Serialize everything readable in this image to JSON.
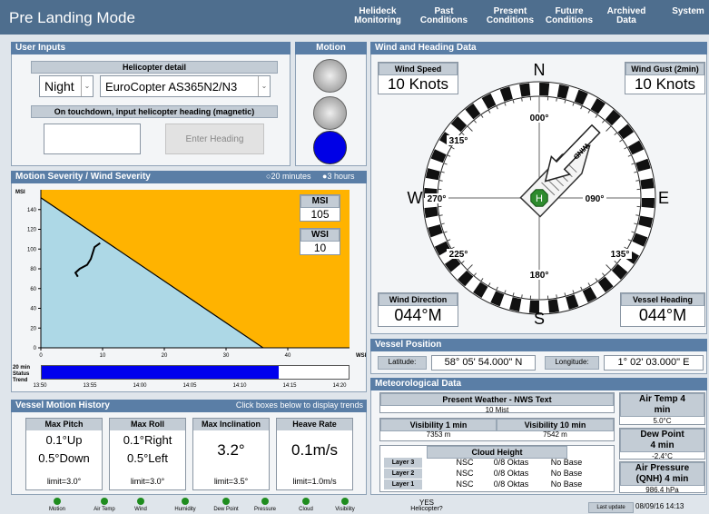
{
  "header": {
    "title": "Pre Landing Mode",
    "nav": [
      "Helideck Monitoring",
      "Past Conditions",
      "Present Conditions",
      "Future Conditions",
      "Archived Data",
      "System"
    ]
  },
  "user_inputs": {
    "title": "User Inputs",
    "helicopter_detail": "Helicopter detail",
    "time_of_day": "Night",
    "helicopter": "EuroCopter AS365N2/N3",
    "heading_prompt": "On touchdown, input helicopter heading (magnetic)",
    "button": "Enter Heading"
  },
  "motion": {
    "title": "Motion"
  },
  "severity": {
    "title": "Motion Severity / Wind Severity",
    "options": [
      "20 minutes",
      "3 hours"
    ],
    "y_label": "MSI",
    "x_label": "WSI",
    "xlim": [
      0,
      50
    ],
    "ylim": [
      0,
      160
    ],
    "xticks": [
      0,
      10,
      20,
      30,
      40
    ],
    "yticks": [
      0,
      20,
      40,
      60,
      80,
      100,
      120,
      140
    ],
    "limit_line": {
      "x": [
        0,
        36
      ],
      "y": [
        152,
        0
      ]
    },
    "trajectory": {
      "x": [
        6.0,
        5.6,
        6.3,
        7.5,
        8.1,
        8.7,
        9.6
      ],
      "y": [
        72,
        76,
        80,
        84,
        90,
        102,
        106
      ]
    },
    "msi_label": "MSI",
    "msi": 105,
    "wsi_label": "WSI",
    "wsi": 10,
    "status_label": "20 min Status Trend",
    "times": [
      "13:50",
      "13:55",
      "14:00",
      "14:05",
      "14:10",
      "14:15",
      "14:20"
    ]
  },
  "history": {
    "title": "Vessel Motion History",
    "hint": "Click boxes below to display trends",
    "cards": [
      {
        "title": "Max Pitch",
        "values": [
          "0.1°Up",
          "0.5°Down"
        ],
        "limit": "limit=3.0°"
      },
      {
        "title": "Max Roll",
        "values": [
          "0.1°Right",
          "0.5°Left"
        ],
        "limit": "limit=3.0°"
      },
      {
        "title": "Max Inclination",
        "values": [
          "3.2°"
        ],
        "limit": "limit=3.5°"
      },
      {
        "title": "Heave Rate",
        "values": [
          "0.1m/s"
        ],
        "limit": "limit=1.0m/s"
      }
    ]
  },
  "indicators": [
    "Motion",
    "Air Temp",
    "Wind",
    "Humidity",
    "Dew Point",
    "Pressure",
    "Cloud",
    "Visibility"
  ],
  "helicopter_status": {
    "value": "YES",
    "label": "Helicopter?"
  },
  "last_update": {
    "label": "Last update (UTC):",
    "value": "08/09/16 14:13"
  },
  "wind": {
    "title": "Wind and Heading Data",
    "speed_label": "Wind Speed",
    "speed": "10 Knots",
    "gust_label": "Wind Gust (2min)",
    "gust": "10 Knots",
    "direction_label": "Wind Direction",
    "direction": "044°M",
    "heading_label": "Vessel Heading",
    "heading": "044°M",
    "cardinals": [
      "N",
      "E",
      "S",
      "W"
    ],
    "degrees": [
      "000°",
      "090°",
      "180°",
      "270°",
      "315°",
      "135°",
      "225°"
    ],
    "helideck": "H",
    "arrow_label": "WIND"
  },
  "position": {
    "title": "Vessel Position",
    "lat_label": "Latitude:",
    "lat": "58° 05' 54.000\" N",
    "lon_label": "Longitude:",
    "lon": "1° 02' 03.000\" E"
  },
  "met": {
    "title": "Meteorological Data",
    "weather_label": "Present Weather - NWS Text",
    "weather": "10 Mist",
    "vis1_label": "Visibility 1 min",
    "vis1": "7353 m",
    "vis10_label": "Visibility 10 min",
    "vis10": "7542 m",
    "cloud_label": "Cloud Height",
    "cloud_rows": [
      [
        "Layer 3",
        "NSC",
        "0/8 Oktas",
        "No Base"
      ],
      [
        "Layer 2",
        "NSC",
        "0/8 Oktas",
        "No Base"
      ],
      [
        "Layer 1",
        "NSC",
        "0/8 Oktas",
        "No Base"
      ]
    ],
    "air_temp_label": "Air Temp 4 min",
    "air_temp": "5.0°C",
    "dew_label": "Dew Point 4 min",
    "dew": "-2.4°C",
    "pressure_label": "Air Pressure (QNH) 4 min",
    "pressure": "986.4 hPa"
  }
}
